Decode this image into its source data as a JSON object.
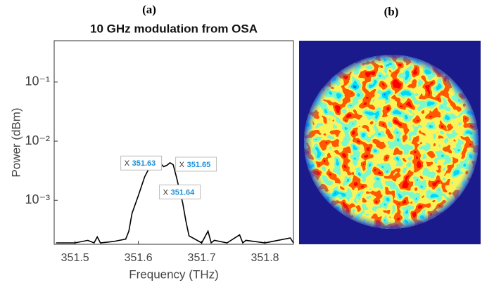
{
  "panel_labels": [
    "(a)",
    "(b)"
  ],
  "chart_data": {
    "type": "line",
    "title": "10 GHz modulation from OSA",
    "xlabel": "Frequency (THz)",
    "ylabel": "Power (dBm)",
    "log_y": true,
    "grid": false,
    "xlim": [
      351.467,
      351.845
    ],
    "ylim": [
      0.00018,
      0.5
    ],
    "xticks": [
      351.5,
      351.6,
      351.7,
      351.8
    ],
    "yticks": [
      {
        "value": 0.1,
        "label": "10⁻¹"
      },
      {
        "value": 0.01,
        "label": "10⁻²"
      },
      {
        "value": 0.001,
        "label": "10⁻³"
      }
    ],
    "series": [
      {
        "color": "#000000",
        "x": [
          351.47,
          351.5,
          351.52,
          351.53,
          351.535,
          351.54,
          351.56,
          351.58,
          351.585,
          351.59,
          351.6,
          351.61,
          351.62,
          351.63,
          351.635,
          351.64,
          351.645,
          351.65,
          351.655,
          351.66,
          351.67,
          351.675,
          351.68,
          351.7,
          351.71,
          351.715,
          351.72,
          351.74,
          351.76,
          351.765,
          351.77,
          351.8,
          351.84,
          351.845
        ],
        "values": [
          0.00019,
          0.00019,
          0.00021,
          0.00019,
          0.00024,
          0.00019,
          0.0002,
          0.00022,
          0.0003,
          0.0006,
          0.0012,
          0.0025,
          0.004,
          0.0045,
          0.0042,
          0.0037,
          0.0039,
          0.0043,
          0.004,
          0.0025,
          0.0009,
          0.00045,
          0.00025,
          0.00019,
          0.0003,
          0.00019,
          0.00021,
          0.00019,
          0.00026,
          0.00019,
          0.00021,
          0.00019,
          0.00023,
          0.00019
        ]
      }
    ],
    "annotations": [
      {
        "prefix": "X",
        "x": 351.63,
        "y": 0.0045
      },
      {
        "prefix": "X",
        "x": 351.65,
        "y": 0.0043
      },
      {
        "prefix": "X",
        "x": 351.64,
        "y": 0.0037
      }
    ]
  }
}
